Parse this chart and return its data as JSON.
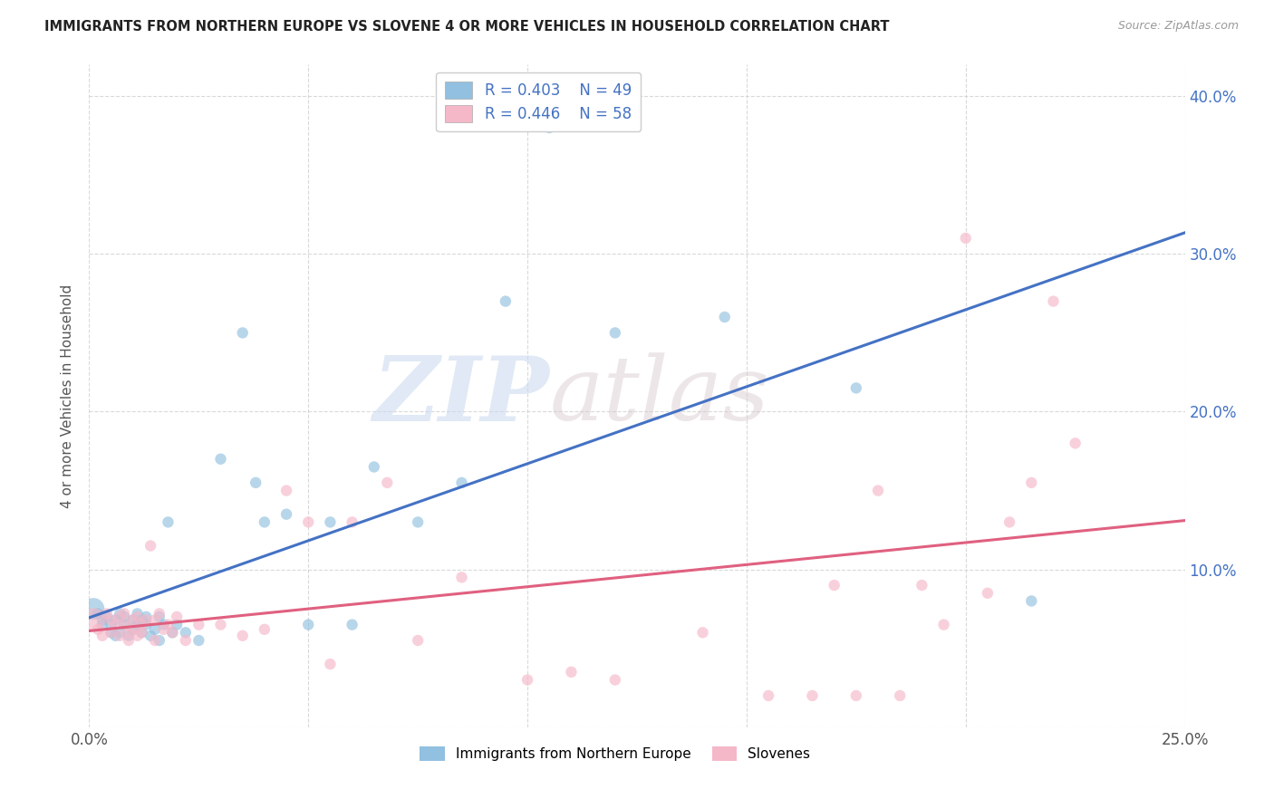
{
  "title": "IMMIGRANTS FROM NORTHERN EUROPE VS SLOVENE 4 OR MORE VEHICLES IN HOUSEHOLD CORRELATION CHART",
  "source": "Source: ZipAtlas.com",
  "ylabel": "4 or more Vehicles in Household",
  "xlim": [
    0.0,
    0.25
  ],
  "ylim": [
    0.0,
    0.42
  ],
  "xticks": [
    0.0,
    0.05,
    0.1,
    0.15,
    0.2,
    0.25
  ],
  "yticks": [
    0.0,
    0.1,
    0.2,
    0.3,
    0.4
  ],
  "xticklabels_left": [
    "0.0%",
    "",
    "",
    "",
    "",
    "25.0%"
  ],
  "yticklabels_left": [
    "",
    "",
    "",
    "",
    ""
  ],
  "yticklabels_right": [
    "",
    "10.0%",
    "20.0%",
    "30.0%",
    "40.0%"
  ],
  "legend_labels": [
    "Immigrants from Northern Europe",
    "Slovenes"
  ],
  "legend_r": [
    "R = 0.403",
    "N = 49"
  ],
  "legend_r2": [
    "R = 0.446",
    "N = 58"
  ],
  "blue_color": "#92c0e0",
  "pink_color": "#f5b8c8",
  "blue_line_color": "#4472c4",
  "pink_line_color": "#e06080",
  "watermark_zip": "ZIP",
  "watermark_atlas": "atlas",
  "blue_x": [
    0.001,
    0.002,
    0.003,
    0.003,
    0.004,
    0.005,
    0.005,
    0.006,
    0.006,
    0.007,
    0.007,
    0.008,
    0.008,
    0.009,
    0.01,
    0.01,
    0.011,
    0.011,
    0.012,
    0.012,
    0.013,
    0.013,
    0.014,
    0.015,
    0.016,
    0.016,
    0.017,
    0.018,
    0.019,
    0.02,
    0.022,
    0.025,
    0.03,
    0.035,
    0.038,
    0.04,
    0.045,
    0.05,
    0.055,
    0.06,
    0.065,
    0.075,
    0.085,
    0.095,
    0.105,
    0.12,
    0.145,
    0.175,
    0.215
  ],
  "blue_y": [
    0.075,
    0.072,
    0.068,
    0.065,
    0.07,
    0.06,
    0.065,
    0.068,
    0.058,
    0.072,
    0.06,
    0.065,
    0.07,
    0.058,
    0.062,
    0.068,
    0.065,
    0.072,
    0.06,
    0.068,
    0.065,
    0.07,
    0.058,
    0.062,
    0.07,
    0.055,
    0.065,
    0.13,
    0.06,
    0.065,
    0.06,
    0.055,
    0.17,
    0.25,
    0.155,
    0.13,
    0.135,
    0.065,
    0.13,
    0.065,
    0.165,
    0.13,
    0.155,
    0.27,
    0.38,
    0.25,
    0.26,
    0.215,
    0.08
  ],
  "pink_x": [
    0.001,
    0.002,
    0.003,
    0.004,
    0.005,
    0.005,
    0.006,
    0.007,
    0.007,
    0.008,
    0.008,
    0.009,
    0.009,
    0.01,
    0.01,
    0.011,
    0.011,
    0.012,
    0.012,
    0.013,
    0.014,
    0.015,
    0.015,
    0.016,
    0.017,
    0.018,
    0.019,
    0.02,
    0.022,
    0.025,
    0.03,
    0.035,
    0.04,
    0.045,
    0.05,
    0.055,
    0.06,
    0.068,
    0.075,
    0.085,
    0.1,
    0.11,
    0.12,
    0.14,
    0.155,
    0.165,
    0.17,
    0.175,
    0.18,
    0.185,
    0.19,
    0.195,
    0.2,
    0.205,
    0.21,
    0.215,
    0.22,
    0.225
  ],
  "pink_y": [
    0.068,
    0.062,
    0.058,
    0.072,
    0.06,
    0.068,
    0.065,
    0.07,
    0.058,
    0.065,
    0.072,
    0.06,
    0.055,
    0.068,
    0.062,
    0.07,
    0.058,
    0.065,
    0.06,
    0.068,
    0.115,
    0.055,
    0.068,
    0.072,
    0.062,
    0.065,
    0.06,
    0.07,
    0.055,
    0.065,
    0.065,
    0.058,
    0.062,
    0.15,
    0.13,
    0.04,
    0.13,
    0.155,
    0.055,
    0.095,
    0.03,
    0.035,
    0.03,
    0.06,
    0.02,
    0.02,
    0.09,
    0.02,
    0.15,
    0.02,
    0.09,
    0.065,
    0.31,
    0.085,
    0.13,
    0.155,
    0.27,
    0.18
  ],
  "blue_sizes": [
    300,
    80,
    80,
    80,
    80,
    80,
    80,
    80,
    80,
    80,
    80,
    80,
    80,
    80,
    80,
    80,
    80,
    80,
    80,
    80,
    80,
    80,
    80,
    80,
    80,
    80,
    80,
    80,
    80,
    80,
    80,
    80,
    80,
    80,
    80,
    80,
    80,
    80,
    80,
    80,
    80,
    80,
    80,
    80,
    80,
    80,
    80,
    80,
    80
  ],
  "pink_sizes": [
    350,
    80,
    80,
    80,
    80,
    80,
    80,
    80,
    80,
    80,
    80,
    80,
    80,
    80,
    80,
    80,
    80,
    80,
    80,
    80,
    80,
    80,
    80,
    80,
    80,
    80,
    80,
    80,
    80,
    80,
    80,
    80,
    80,
    80,
    80,
    80,
    80,
    80,
    80,
    80,
    80,
    80,
    80,
    80,
    80,
    80,
    80,
    80,
    80,
    80,
    80,
    80,
    80,
    80,
    80,
    80,
    80,
    80
  ]
}
